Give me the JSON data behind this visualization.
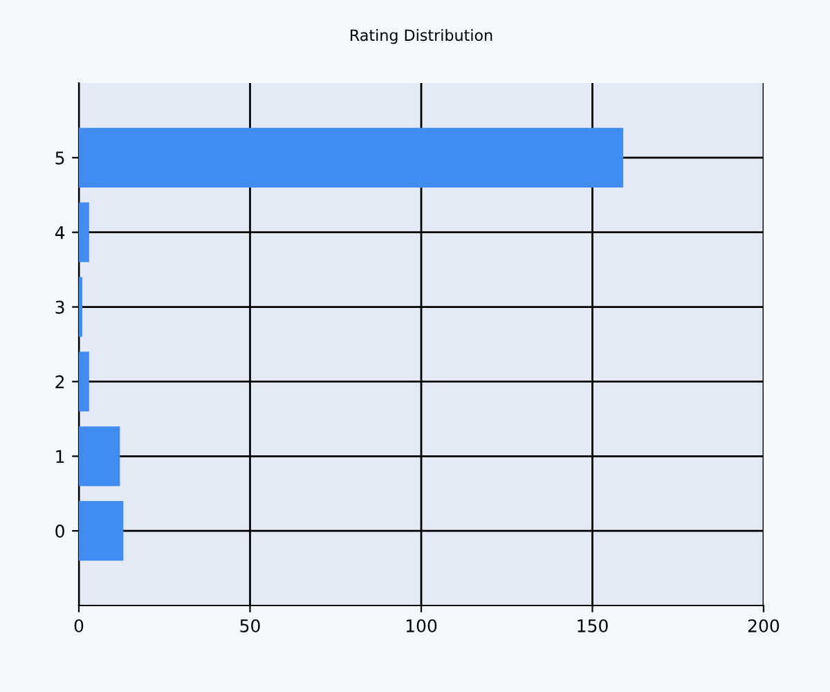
{
  "chart_data": {
    "type": "bar",
    "orientation": "horizontal",
    "title": "Rating Distribution",
    "categories": [
      "5",
      "4",
      "3",
      "2",
      "1",
      "0"
    ],
    "values": [
      159,
      3,
      1,
      3,
      12,
      13
    ],
    "color": "#418cf0",
    "xlim": [
      0,
      200
    ],
    "xticks": [
      0,
      50,
      100,
      150,
      200
    ],
    "grid": true
  }
}
